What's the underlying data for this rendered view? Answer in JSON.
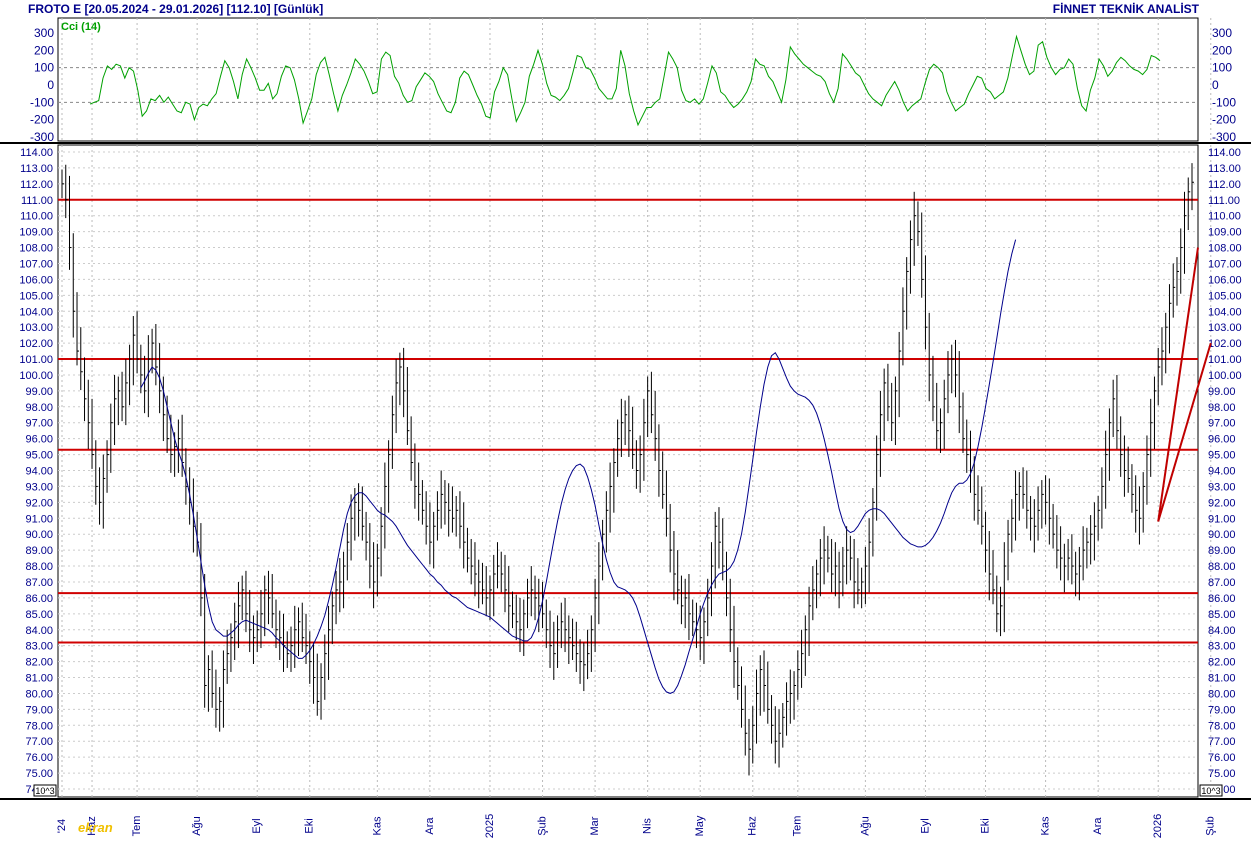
{
  "header": {
    "left": "FROTO E  [20.05.2024 - 29.01.2026]  [112.10]  [Günlük]",
    "right": "FİNNET TEKNİK ANALİST"
  },
  "watermark": "ekran",
  "chart_data": [
    {
      "type": "line",
      "title": "Cci (14)",
      "ylim": [
        -300,
        300
      ],
      "yticks": [
        300,
        200,
        100,
        0,
        -100,
        -200,
        -300
      ],
      "ytick_labels": [
        "300",
        "200",
        "100",
        "0",
        "-100",
        "-200",
        "-300"
      ],
      "reference_lines": [
        100,
        -100
      ],
      "series_color": "#00a000",
      "series": [
        {
          "values": [
            -110,
            -100,
            -90,
            40,
            110,
            90,
            120,
            110,
            40,
            100,
            80,
            -30,
            -180,
            -150,
            -80,
            -90,
            -60,
            -100,
            -70,
            -110,
            -150,
            -160,
            -100,
            -110,
            -200,
            -130,
            -110,
            -120,
            -80,
            -50,
            50,
            140,
            100,
            20,
            -80,
            60,
            150,
            100,
            40,
            -30,
            -30,
            10,
            -80,
            -50,
            50,
            110,
            100,
            30,
            -80,
            -220,
            -150,
            -80,
            60,
            130,
            160,
            60,
            -50,
            -150,
            -60,
            0,
            70,
            150,
            120,
            80,
            20,
            -50,
            -40,
            150,
            190,
            170,
            50,
            10,
            -60,
            -100,
            -90,
            -10,
            30,
            70,
            50,
            20,
            -50,
            -100,
            -150,
            -160,
            -100,
            40,
            80,
            60,
            0,
            -60,
            -110,
            -180,
            -190,
            -40,
            20,
            100,
            60,
            -80,
            -210,
            -160,
            -100,
            50,
            120,
            200,
            120,
            10,
            -60,
            -70,
            -90,
            -60,
            -20,
            70,
            170,
            160,
            100,
            90,
            40,
            -20,
            -50,
            -80,
            -80,
            -20,
            200,
            110,
            -50,
            -150,
            -230,
            -180,
            -130,
            -130,
            -100,
            -80,
            50,
            190,
            150,
            100,
            -30,
            -90,
            -100,
            -80,
            -110,
            -80,
            10,
            110,
            70,
            -40,
            -60,
            -100,
            -130,
            -110,
            -80,
            -40,
            20,
            150,
            120,
            110,
            50,
            20,
            -40,
            -100,
            30,
            220,
            180,
            150,
            120,
            100,
            80,
            60,
            50,
            20,
            -50,
            -100,
            -20,
            180,
            150,
            110,
            70,
            50,
            0,
            -50,
            -80,
            -100,
            -120,
            -60,
            -20,
            20,
            -30,
            -100,
            -150,
            -120,
            -100,
            -80,
            10,
            90,
            120,
            100,
            70,
            -40,
            -100,
            -150,
            -130,
            -110,
            -50,
            0,
            50,
            40,
            -20,
            -40,
            -80,
            -60,
            -40,
            40,
            160,
            280,
            200,
            120,
            60,
            80,
            230,
            250,
            160,
            100,
            60,
            90,
            100,
            150,
            120,
            -20,
            -120,
            -150,
            -30,
            40,
            150,
            110,
            50,
            80,
            130,
            160,
            140,
            110,
            90,
            80,
            60,
            90,
            170,
            160,
            140
          ]
        }
      ]
    },
    {
      "type": "candlestick-bar",
      "ylim": [
        74,
        114
      ],
      "yticks": [
        114,
        113,
        112,
        111,
        110,
        109,
        108,
        107,
        106,
        105,
        104,
        103,
        102,
        101,
        100,
        99,
        98,
        97,
        96,
        95,
        94,
        93,
        92,
        91,
        90,
        89,
        88,
        87,
        86,
        85,
        84,
        83,
        82,
        81,
        80,
        79,
        78,
        77,
        76,
        75,
        74
      ],
      "ytick_labels": [
        "114.00",
        "113.00",
        "112.00",
        "111.00",
        "110.00",
        "109.00",
        "108.00",
        "107.00",
        "106.00",
        "105.00",
        "104.00",
        "103.00",
        "102.00",
        "101.00",
        "100.00",
        "99.00",
        "98.00",
        "97.00",
        "96.00",
        "95.00",
        "94.00",
        "93.00",
        "92.00",
        "91.00",
        "90.00",
        "89.00",
        "88.00",
        "87.00",
        "86.00",
        "85.00",
        "84.00",
        "83.00",
        "82.00",
        "81.00",
        "80.00",
        "79.00",
        "78.00",
        "77.00",
        "76.00",
        "75.00",
        "74.00"
      ],
      "scale_label": "10^3",
      "price_unit": 1000,
      "xtick_labels": [
        "'24",
        "Haz",
        "Tem",
        "Ağu",
        "Eyl",
        "Eki",
        "Kas",
        "Ara",
        "2025",
        "Şub",
        "Mar",
        "Nis",
        "May",
        "Haz",
        "Tem",
        "Ağu",
        "Eyl",
        "Eki",
        "Kas",
        "Ara",
        "2026",
        "Şub"
      ],
      "xtick_index": [
        0,
        8,
        20,
        36,
        52,
        66,
        84,
        98,
        114,
        128,
        142,
        156,
        170,
        184,
        196,
        214,
        230,
        246,
        262,
        276,
        292,
        306
      ],
      "support_resistance": [
        111.0,
        101.0,
        95.3,
        86.3,
        83.2
      ],
      "trendline": {
        "from": [
          292,
          90.8
        ],
        "to": [
          310,
          108.0
        ],
        "color": "#c00000"
      },
      "series": [
        {
          "name": "close",
          "color": "#000000",
          "values": [
            112.0,
            111.0,
            108.0,
            104.0,
            101.5,
            100.2,
            98.5,
            97.0,
            95.0,
            93.0,
            92.0,
            93.5,
            95.0,
            97.0,
            98.5,
            99.0,
            98.0,
            99.5,
            101.0,
            102.5,
            101.0,
            100.0,
            99.0,
            101.0,
            102.0,
            100.5,
            99.0,
            97.5,
            96.0,
            95.0,
            95.5,
            96.0,
            94.5,
            93.0,
            92.0,
            90.5,
            89.5,
            86.0,
            80.5,
            81.5,
            80.0,
            79.0,
            79.5,
            81.5,
            82.5,
            83.5,
            84.5,
            85.5,
            86.5,
            85.0,
            84.0,
            83.5,
            84.0,
            85.0,
            86.5,
            86.0,
            85.0,
            84.0,
            83.5,
            83.0,
            82.5,
            83.0,
            84.0,
            84.5,
            83.5,
            83.0,
            82.0,
            81.0,
            79.5,
            81.0,
            82.5,
            84.0,
            85.5,
            86.5,
            87.0,
            88.0,
            89.5,
            91.0,
            92.0,
            91.5,
            90.5,
            89.5,
            88.0,
            87.0,
            88.5,
            90.5,
            93.0,
            95.0,
            97.5,
            99.5,
            100.5,
            99.0,
            96.5,
            94.5,
            93.0,
            92.5,
            91.5,
            90.5,
            89.5,
            90.5,
            91.5,
            92.5,
            92.0,
            91.5,
            91.0,
            91.5,
            90.5,
            89.5,
            88.5,
            88.0,
            87.5,
            87.0,
            86.5,
            86.0,
            86.5,
            87.5,
            88.0,
            87.5,
            86.5,
            85.5,
            85.0,
            84.5,
            84.0,
            85.0,
            86.0,
            86.5,
            86.0,
            85.5,
            85.0,
            84.0,
            83.0,
            82.5,
            84.0,
            84.5,
            84.0,
            83.5,
            83.0,
            82.5,
            82.0,
            81.8,
            82.5,
            84.0,
            86.0,
            88.0,
            90.0,
            91.5,
            93.0,
            94.5,
            96.0,
            97.0,
            97.5,
            96.5,
            95.0,
            94.0,
            95.0,
            97.0,
            99.0,
            97.5,
            96.0,
            94.0,
            92.5,
            91.0,
            89.0,
            87.5,
            86.5,
            85.5,
            86.0,
            85.0,
            84.5,
            84.0,
            83.5,
            84.5,
            86.0,
            88.0,
            90.5,
            89.5,
            88.0,
            86.0,
            84.0,
            82.0,
            80.5,
            79.0,
            77.5,
            76.5,
            78.0,
            80.0,
            81.5,
            80.5,
            79.0,
            78.0,
            77.0,
            77.5,
            78.5,
            79.5,
            80.0,
            80.5,
            81.5,
            82.5,
            84.0,
            85.5,
            86.5,
            87.5,
            88.5,
            89.0,
            88.5,
            87.5,
            88.0,
            87.0,
            88.0,
            89.0,
            88.5,
            87.0,
            86.5,
            87.0,
            88.0,
            89.5,
            92.0,
            95.0,
            97.5,
            99.5,
            98.0,
            97.0,
            99.0,
            101.5,
            104.0,
            106.5,
            108.5,
            110.0,
            109.0,
            106.0,
            103.0,
            100.0,
            98.0,
            96.5,
            97.0,
            98.5,
            100.0,
            101.0,
            100.0,
            98.0,
            96.0,
            95.0,
            94.0,
            92.5,
            91.5,
            90.5,
            89.0,
            87.5,
            86.5,
            85.0,
            85.5,
            88.0,
            90.0,
            91.0,
            92.5,
            93.0,
            92.5,
            91.5,
            91.0,
            90.5,
            91.5,
            92.5,
            92.0,
            91.0,
            90.0,
            89.0,
            88.5,
            88.0,
            88.5,
            88.0,
            87.5,
            88.0,
            89.0,
            89.5,
            90.0,
            90.5,
            91.5,
            93.0,
            95.0,
            97.0,
            98.5,
            96.5,
            95.0,
            94.0,
            93.5,
            92.5,
            91.5,
            91.0,
            93.0,
            95.0,
            97.0,
            99.0,
            100.5,
            101.5,
            103.0,
            104.5,
            105.5,
            106.5,
            108.0,
            110.0,
            111.5,
            112.1
          ]
        },
        {
          "name": "moving-average",
          "color": "#00008b",
          "values": [
            null,
            null,
            null,
            null,
            null,
            null,
            null,
            null,
            null,
            null,
            null,
            null,
            null,
            null,
            null,
            null,
            null,
            null,
            null,
            null,
            null,
            99.2,
            99.6,
            100.1,
            100.5,
            100.3,
            99.8,
            99.0,
            98.0,
            97.0,
            96.0,
            95.2,
            94.5,
            93.6,
            92.5,
            91.2,
            89.8,
            88.3,
            86.8,
            85.5,
            84.5,
            84.0,
            83.8,
            83.6,
            83.6,
            83.8,
            84.0,
            84.3,
            84.5,
            84.6,
            84.5,
            84.4,
            84.3,
            84.2,
            84.1,
            84.0,
            83.8,
            83.5,
            83.3,
            83.0,
            82.8,
            82.6,
            82.4,
            82.2,
            82.2,
            82.4,
            82.7,
            83.1,
            83.6,
            84.2,
            84.9,
            85.8,
            86.8,
            87.9,
            89.1,
            90.3,
            91.3,
            92.0,
            92.4,
            92.6,
            92.6,
            92.4,
            92.1,
            91.8,
            91.5,
            91.3,
            91.2,
            91.0,
            90.8,
            90.5,
            90.1,
            89.7,
            89.3,
            89.0,
            88.7,
            88.4,
            88.1,
            87.8,
            87.5,
            87.3,
            87.0,
            86.8,
            86.5,
            86.3,
            86.1,
            86.0,
            85.8,
            85.6,
            85.4,
            85.3,
            85.2,
            85.1,
            85.0,
            84.9,
            84.8,
            84.6,
            84.4,
            84.2,
            84.0,
            83.8,
            83.6,
            83.5,
            83.4,
            83.3,
            83.3,
            83.5,
            84.0,
            84.8,
            85.8,
            87.0,
            88.3,
            89.6,
            90.8,
            91.9,
            92.8,
            93.5,
            94.0,
            94.3,
            94.4,
            94.2,
            93.6,
            92.8,
            91.8,
            90.6,
            89.4,
            88.4,
            87.6,
            87.0,
            86.7,
            86.6,
            86.5,
            86.3,
            86.0,
            85.5,
            84.8,
            84.0,
            83.2,
            82.4,
            81.6,
            80.9,
            80.4,
            80.1,
            80.0,
            80.1,
            80.5,
            81.1,
            81.8,
            82.6,
            83.4,
            84.2,
            85.0,
            85.7,
            86.3,
            86.8,
            87.2,
            87.5,
            87.6,
            87.7,
            87.9,
            88.3,
            89.0,
            90.0,
            91.4,
            93.0,
            94.7,
            96.4,
            98.0,
            99.4,
            100.5,
            101.2,
            101.4,
            101.0,
            100.4,
            99.8,
            99.3,
            99.0,
            98.8,
            98.7,
            98.6,
            98.4,
            98.1,
            97.6,
            96.9,
            96.0,
            95.0,
            93.9,
            92.7,
            91.6,
            90.8,
            90.3,
            90.1,
            90.2,
            90.5,
            90.9,
            91.3,
            91.5,
            91.6,
            91.6,
            91.5,
            91.3,
            91.0,
            90.7,
            90.4,
            90.1,
            89.8,
            89.6,
            89.4,
            89.3,
            89.2,
            89.2,
            89.3,
            89.5,
            89.8,
            90.2,
            90.7,
            91.3,
            92.0,
            92.6,
            93.0,
            93.2,
            93.2,
            93.4,
            93.8,
            94.5,
            95.5,
            96.7,
            98.0,
            99.4,
            100.8,
            102.3,
            103.8,
            105.2,
            106.5,
            107.6,
            108.5
          ]
        }
      ]
    }
  ]
}
